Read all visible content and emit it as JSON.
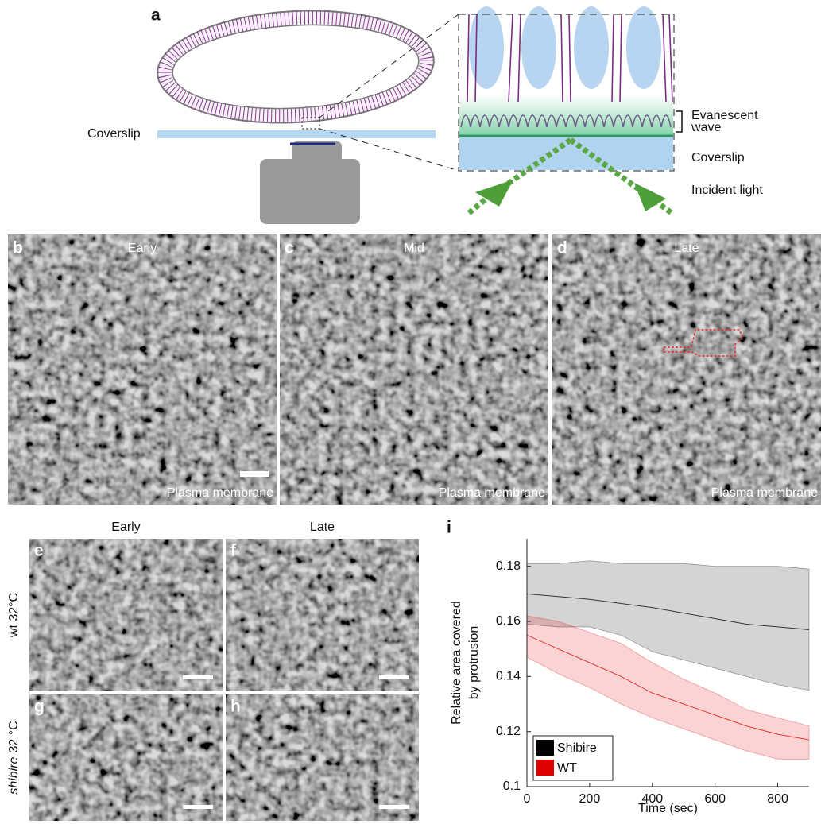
{
  "figure": {
    "a": {
      "letter": "a",
      "coverslip": "Coverslip",
      "inset_labels": {
        "evanescent": [
          "Evanescent",
          "wave"
        ],
        "coverslip": "Coverslip",
        "incident": "Incident light"
      }
    },
    "top_panels": [
      {
        "letter": "b",
        "stage": "Early",
        "caption": "Plasma membrane"
      },
      {
        "letter": "c",
        "stage": "Mid",
        "caption": "Plasma membrane"
      },
      {
        "letter": "d",
        "stage": "Late",
        "caption": "Plasma membrane"
      }
    ],
    "bottom_grid": {
      "col_headers": [
        "Early",
        "Late"
      ],
      "row_headers": [
        {
          "text": "wt 32°C"
        },
        {
          "italic": "shibire",
          "text": "32 °C"
        }
      ],
      "letters": [
        "e",
        "f",
        "g",
        "h"
      ]
    },
    "i_letter": "i"
  },
  "chart_data": {
    "type": "line",
    "ylabel": [
      "Relative area covered",
      "by protrusion"
    ],
    "xlabel": "Time (sec)",
    "x": [
      0,
      100,
      200,
      300,
      400,
      500,
      600,
      700,
      800,
      900
    ],
    "series": [
      {
        "name": "Shibire",
        "color": "#000000",
        "values": [
          0.17,
          0.169,
          0.168,
          0.1665,
          0.165,
          0.163,
          0.161,
          0.159,
          0.158,
          0.157
        ],
        "upper": [
          0.181,
          0.181,
          0.182,
          0.181,
          0.181,
          0.181,
          0.18,
          0.18,
          0.18,
          0.179
        ],
        "lower": [
          0.159,
          0.158,
          0.158,
          0.155,
          0.149,
          0.146,
          0.143,
          0.14,
          0.137,
          0.135
        ]
      },
      {
        "name": "WT",
        "color": "#e00000",
        "values": [
          0.155,
          0.15,
          0.145,
          0.14,
          0.134,
          0.13,
          0.126,
          0.122,
          0.119,
          0.117
        ],
        "upper": [
          0.162,
          0.16,
          0.156,
          0.152,
          0.145,
          0.139,
          0.134,
          0.128,
          0.125,
          0.122
        ],
        "lower": [
          0.147,
          0.141,
          0.136,
          0.13,
          0.125,
          0.121,
          0.117,
          0.113,
          0.11,
          0.11
        ]
      }
    ],
    "xlim": [
      0,
      900
    ],
    "xticks": [
      0,
      200,
      400,
      600,
      800
    ],
    "ylim": [
      0.1,
      0.19
    ],
    "yticks": [
      0.1,
      0.12,
      0.14,
      0.16,
      0.18
    ],
    "legend": "lower left"
  }
}
